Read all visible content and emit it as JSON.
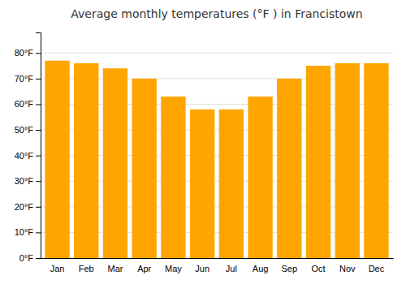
{
  "chart_data": {
    "type": "bar",
    "title": "Average monthly temperatures (°F ) in Francistown",
    "categories": [
      "Jan",
      "Feb",
      "Mar",
      "Apr",
      "May",
      "Jun",
      "Jul",
      "Aug",
      "Sep",
      "Oct",
      "Nov",
      "Dec"
    ],
    "values": [
      77,
      76,
      74,
      70,
      63,
      58,
      58,
      63,
      70,
      75,
      76,
      76
    ],
    "color": "#FFA500",
    "ylim": [
      0,
      88
    ],
    "yticks": [
      {
        "value": 0,
        "label": "0°F"
      },
      {
        "value": 10,
        "label": "10°F"
      },
      {
        "value": 20,
        "label": "20°F"
      },
      {
        "value": 30,
        "label": "30°F"
      },
      {
        "value": 40,
        "label": "40°F"
      },
      {
        "value": 50,
        "label": "50°F"
      },
      {
        "value": 60,
        "label": "60°F"
      },
      {
        "value": 70,
        "label": "70°F"
      },
      {
        "value": 80,
        "label": "80°F"
      }
    ],
    "grid": true
  }
}
